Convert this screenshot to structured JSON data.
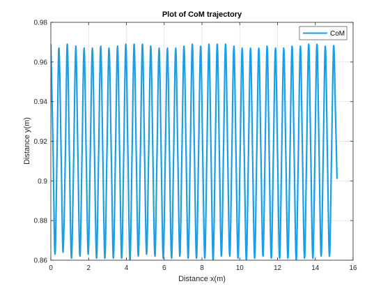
{
  "chart_data": {
    "type": "line",
    "title": "Plot of CoM trajectory",
    "xlabel": "Distance x(m)",
    "ylabel": "Distance y(m)",
    "xlim": [
      0,
      16
    ],
    "ylim": [
      0.86,
      0.98
    ],
    "xticks": [
      "0",
      "2",
      "4",
      "6",
      "8",
      "10",
      "12",
      "14",
      "16"
    ],
    "yticks": [
      "0.86",
      "0.88",
      "0.9",
      "0.92",
      "0.94",
      "0.96",
      "0.98"
    ],
    "grid": true,
    "legend_position": "top-right",
    "series": [
      {
        "name": "CoM",
        "color": "#1a9ee8",
        "points": [
          [
            0.0,
            0.969
          ],
          [
            0.12,
            0.915
          ],
          [
            0.22,
            0.863
          ],
          [
            0.33,
            0.915
          ],
          [
            0.43,
            0.967
          ],
          [
            0.55,
            0.911
          ],
          [
            0.65,
            0.864
          ],
          [
            0.77,
            0.914
          ],
          [
            0.87,
            0.969
          ],
          [
            0.98,
            0.914
          ],
          [
            1.09,
            0.861
          ],
          [
            1.21,
            0.912
          ],
          [
            1.32,
            0.968
          ],
          [
            1.43,
            0.914
          ],
          [
            1.54,
            0.862
          ],
          [
            1.65,
            0.913
          ],
          [
            1.76,
            0.967
          ],
          [
            1.87,
            0.914
          ],
          [
            1.98,
            0.863
          ],
          [
            2.09,
            0.915
          ],
          [
            2.2,
            0.967
          ],
          [
            2.31,
            0.914
          ],
          [
            2.42,
            0.861
          ],
          [
            2.53,
            0.914
          ],
          [
            2.64,
            0.968
          ],
          [
            2.75,
            0.914
          ],
          [
            2.86,
            0.861
          ],
          [
            2.97,
            0.914
          ],
          [
            3.08,
            0.967
          ],
          [
            3.2,
            0.913
          ],
          [
            3.31,
            0.861
          ],
          [
            3.42,
            0.913
          ],
          [
            3.53,
            0.968
          ],
          [
            3.64,
            0.914
          ],
          [
            3.75,
            0.861
          ],
          [
            3.86,
            0.914
          ],
          [
            3.97,
            0.969
          ],
          [
            4.08,
            0.914
          ],
          [
            4.19,
            0.86
          ],
          [
            4.3,
            0.914
          ],
          [
            4.41,
            0.969
          ],
          [
            4.52,
            0.914
          ],
          [
            4.63,
            0.862
          ],
          [
            4.74,
            0.914
          ],
          [
            4.85,
            0.969
          ],
          [
            4.96,
            0.914
          ],
          [
            5.07,
            0.863
          ],
          [
            5.18,
            0.915
          ],
          [
            5.29,
            0.968
          ],
          [
            5.4,
            0.914
          ],
          [
            5.51,
            0.862
          ],
          [
            5.62,
            0.913
          ],
          [
            5.73,
            0.967
          ],
          [
            5.84,
            0.914
          ],
          [
            5.95,
            0.861
          ],
          [
            6.06,
            0.913
          ],
          [
            6.17,
            0.967
          ],
          [
            6.28,
            0.914
          ],
          [
            6.39,
            0.861
          ],
          [
            6.5,
            0.913
          ],
          [
            6.61,
            0.967
          ],
          [
            6.72,
            0.914
          ],
          [
            6.83,
            0.862
          ],
          [
            6.94,
            0.915
          ],
          [
            7.05,
            0.968
          ],
          [
            7.16,
            0.914
          ],
          [
            7.27,
            0.861
          ],
          [
            7.38,
            0.914
          ],
          [
            7.49,
            0.969
          ],
          [
            7.6,
            0.914
          ],
          [
            7.71,
            0.861
          ],
          [
            7.82,
            0.914
          ],
          [
            7.93,
            0.968
          ],
          [
            8.04,
            0.914
          ],
          [
            8.15,
            0.861
          ],
          [
            8.26,
            0.914
          ],
          [
            8.37,
            0.969
          ],
          [
            8.48,
            0.914
          ],
          [
            8.59,
            0.86
          ],
          [
            8.7,
            0.914
          ],
          [
            8.81,
            0.969
          ],
          [
            8.92,
            0.914
          ],
          [
            9.03,
            0.862
          ],
          [
            9.14,
            0.915
          ],
          [
            9.25,
            0.969
          ],
          [
            9.36,
            0.914
          ],
          [
            9.47,
            0.862
          ],
          [
            9.58,
            0.913
          ],
          [
            9.69,
            0.968
          ],
          [
            9.8,
            0.914
          ],
          [
            9.91,
            0.861
          ],
          [
            10.02,
            0.914
          ],
          [
            10.13,
            0.967
          ],
          [
            10.24,
            0.913
          ],
          [
            10.35,
            0.86
          ],
          [
            10.46,
            0.913
          ],
          [
            10.57,
            0.967
          ],
          [
            10.68,
            0.913
          ],
          [
            10.79,
            0.861
          ],
          [
            10.9,
            0.914
          ],
          [
            11.01,
            0.967
          ],
          [
            11.12,
            0.914
          ],
          [
            11.23,
            0.862
          ],
          [
            11.34,
            0.914
          ],
          [
            11.45,
            0.968
          ],
          [
            11.56,
            0.913
          ],
          [
            11.67,
            0.861
          ],
          [
            11.78,
            0.913
          ],
          [
            11.89,
            0.967
          ],
          [
            12.0,
            0.914
          ],
          [
            12.11,
            0.861
          ],
          [
            12.22,
            0.914
          ],
          [
            12.33,
            0.967
          ],
          [
            12.44,
            0.913
          ],
          [
            12.55,
            0.861
          ],
          [
            12.66,
            0.914
          ],
          [
            12.77,
            0.968
          ],
          [
            12.88,
            0.914
          ],
          [
            12.99,
            0.86
          ],
          [
            13.1,
            0.913
          ],
          [
            13.21,
            0.968
          ],
          [
            13.32,
            0.914
          ],
          [
            13.43,
            0.861
          ],
          [
            13.54,
            0.914
          ],
          [
            13.65,
            0.969
          ],
          [
            13.76,
            0.914
          ],
          [
            13.87,
            0.861
          ],
          [
            13.98,
            0.914
          ],
          [
            14.09,
            0.969
          ],
          [
            14.2,
            0.914
          ],
          [
            14.31,
            0.862
          ],
          [
            14.42,
            0.914
          ],
          [
            14.53,
            0.968
          ],
          [
            14.64,
            0.913
          ],
          [
            14.75,
            0.862
          ],
          [
            14.86,
            0.914
          ],
          [
            14.97,
            0.968
          ],
          [
            15.07,
            0.933
          ],
          [
            15.15,
            0.901
          ]
        ]
      }
    ]
  }
}
